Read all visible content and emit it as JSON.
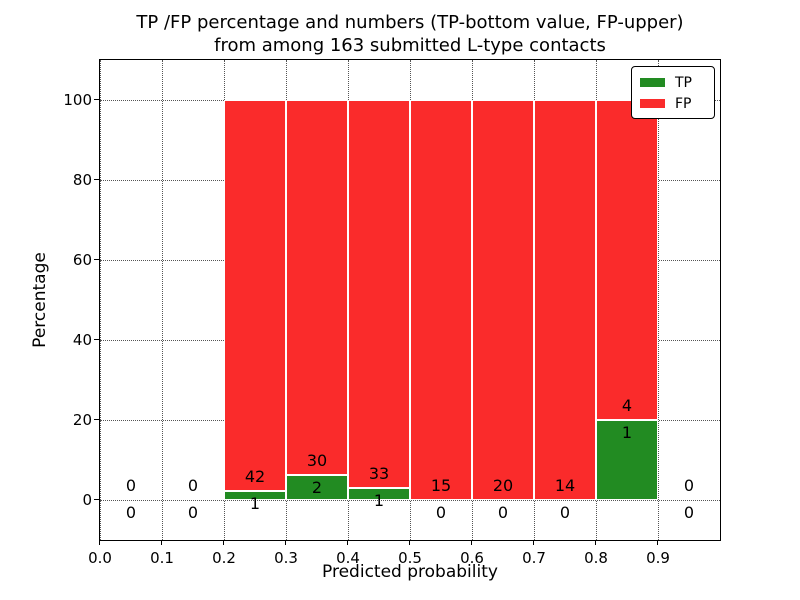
{
  "figure": {
    "title_line1": "TP /FP percentage and numbers (TP-bottom value, FP-upper)",
    "title_line2": "from among 163 submitted L-type contacts"
  },
  "chart_data": {
    "type": "bar",
    "stacked": true,
    "title": "TP /FP percentage and numbers (TP-bottom value, FP-upper)\nfrom among 163 submitted L-type contacts",
    "xlabel": "Predicted probability",
    "ylabel": "Percentage",
    "xlim": [
      0.0,
      1.0
    ],
    "ylim": [
      -10,
      110
    ],
    "grid": {
      "visible": true,
      "linestyle": "dotted",
      "color": "#555555"
    },
    "legend": {
      "position": "upper right",
      "entries": [
        "TP",
        "FP"
      ]
    },
    "total_contacts": 163,
    "xticks": [
      {
        "value": 0.0,
        "label": "0.0"
      },
      {
        "value": 0.1,
        "label": "0.1"
      },
      {
        "value": 0.2,
        "label": "0.2"
      },
      {
        "value": 0.3,
        "label": "0.3"
      },
      {
        "value": 0.4,
        "label": "0.4"
      },
      {
        "value": 0.5,
        "label": "0.5"
      },
      {
        "value": 0.6,
        "label": "0.6"
      },
      {
        "value": 0.7,
        "label": "0.7"
      },
      {
        "value": 0.8,
        "label": "0.8"
      },
      {
        "value": 0.9,
        "label": "0.9"
      }
    ],
    "yticks": [
      {
        "value": 0,
        "label": "0"
      },
      {
        "value": 20,
        "label": "20"
      },
      {
        "value": 40,
        "label": "40"
      },
      {
        "value": 60,
        "label": "60"
      },
      {
        "value": 80,
        "label": "80"
      },
      {
        "value": 100,
        "label": "100"
      }
    ],
    "series": [
      {
        "name": "TP",
        "color": "#228B22",
        "counts": [
          0,
          0,
          1,
          2,
          1,
          0,
          0,
          0,
          1,
          0
        ]
      },
      {
        "name": "FP",
        "color": "#FA2B2B",
        "counts": [
          0,
          0,
          42,
          30,
          33,
          15,
          20,
          14,
          4,
          0
        ]
      }
    ],
    "bins": [
      {
        "range": [
          0.0,
          0.1
        ],
        "center": 0.05,
        "tp": 0,
        "fp": 0,
        "tp_pct": 0,
        "fp_pct": 0
      },
      {
        "range": [
          0.1,
          0.2
        ],
        "center": 0.15,
        "tp": 0,
        "fp": 0,
        "tp_pct": 0,
        "fp_pct": 0
      },
      {
        "range": [
          0.2,
          0.3
        ],
        "center": 0.25,
        "tp": 1,
        "fp": 42,
        "tp_pct": 2.33,
        "fp_pct": 97.67
      },
      {
        "range": [
          0.3,
          0.4
        ],
        "center": 0.35,
        "tp": 2,
        "fp": 30,
        "tp_pct": 6.25,
        "fp_pct": 93.75
      },
      {
        "range": [
          0.4,
          0.5
        ],
        "center": 0.45,
        "tp": 1,
        "fp": 33,
        "tp_pct": 2.94,
        "fp_pct": 97.06
      },
      {
        "range": [
          0.5,
          0.6
        ],
        "center": 0.55,
        "tp": 0,
        "fp": 15,
        "tp_pct": 0,
        "fp_pct": 100
      },
      {
        "range": [
          0.6,
          0.7
        ],
        "center": 0.65,
        "tp": 0,
        "fp": 20,
        "tp_pct": 0,
        "fp_pct": 100
      },
      {
        "range": [
          0.7,
          0.8
        ],
        "center": 0.75,
        "tp": 0,
        "fp": 14,
        "tp_pct": 0,
        "fp_pct": 100
      },
      {
        "range": [
          0.8,
          0.9
        ],
        "center": 0.85,
        "tp": 1,
        "fp": 4,
        "tp_pct": 20.0,
        "fp_pct": 80.0
      },
      {
        "range": [
          0.9,
          1.0
        ],
        "center": 0.95,
        "tp": 0,
        "fp": 0,
        "tp_pct": 0,
        "fp_pct": 0
      }
    ]
  }
}
